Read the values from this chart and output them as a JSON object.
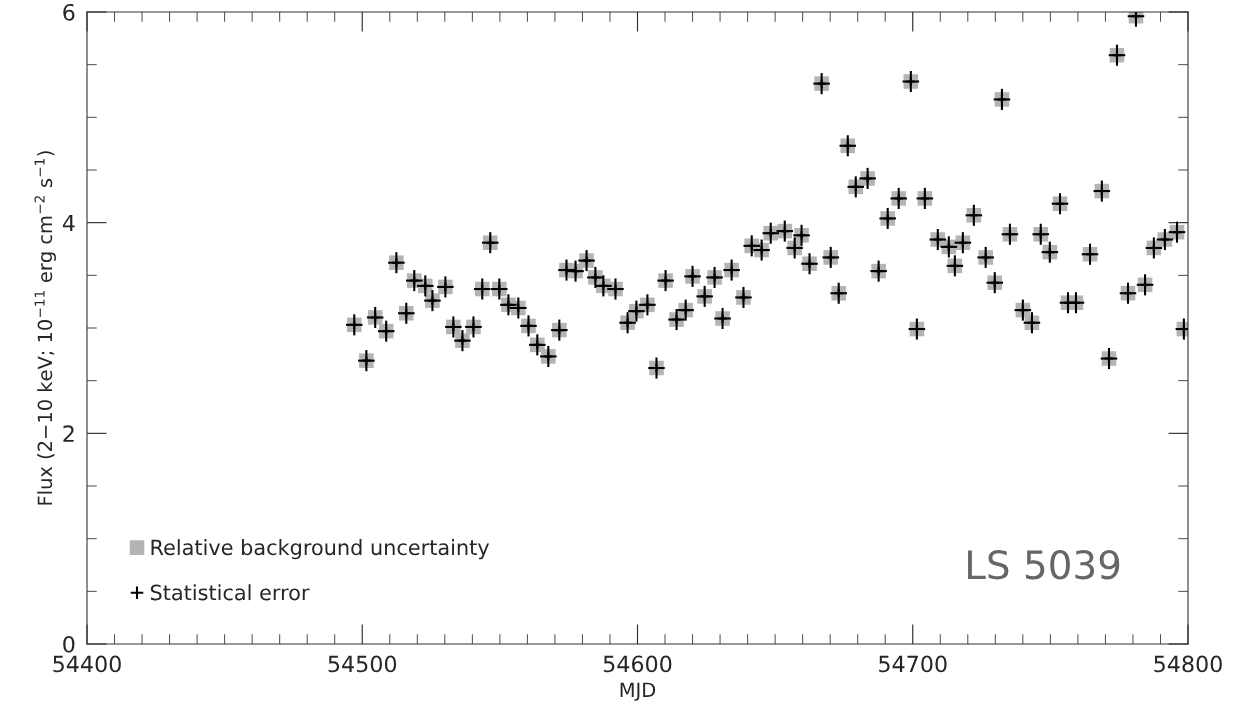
{
  "chart_data": {
    "type": "scatter",
    "xlabel": "MJD",
    "ylabel": "Flux (2−10 keV; 10$^{−11}$ erg cm$^{−2}$ s$^{−1}$)",
    "x": [
      54497.1,
      54501.5,
      54504.7,
      54508.7,
      54512.4,
      54516,
      54518.9,
      54522.9,
      54525.5,
      54530.2,
      54533.1,
      54536.4,
      54540.4,
      54543.6,
      54546.5,
      54549.8,
      54553.1,
      54556.7,
      54560.4,
      54563.6,
      54567.6,
      54571.6,
      54574.2,
      54577.5,
      54581.5,
      54584.7,
      54587.6,
      54592,
      54596.4,
      54599.6,
      54603.6,
      54606.9,
      54610.2,
      54614.2,
      54617.5,
      54620,
      54624.4,
      54628,
      54630.9,
      54634.2,
      54638.5,
      54641.5,
      54645.1,
      54648.4,
      54653.5,
      54657.1,
      54659.6,
      54662.5,
      54666.9,
      54670.2,
      54673.1,
      54676.4,
      54679.3,
      54683.6,
      54687.6,
      54690.9,
      54694.9,
      54699.3,
      54701.5,
      54704.4,
      54709.1,
      54713.1,
      54715.3,
      54718.2,
      54722.2,
      54726.5,
      54729.8,
      54732.4,
      54735.3,
      54740,
      54743.3,
      54746.5,
      54749.8,
      54753.5,
      54756.4,
      54759.3,
      54764.4,
      54768.7,
      54771.3,
      54774.2,
      54778.2,
      54781.1,
      54784.4,
      54787.6,
      54791.6,
      54796,
      54798.5
    ],
    "series": [
      {
        "name": "Relative background uncertainty",
        "color": "#b4b4b4",
        "marker": "square",
        "values": [
          3.03,
          2.69,
          3.1,
          2.97,
          3.62,
          3.14,
          3.45,
          3.4,
          3.26,
          3.39,
          3.01,
          2.88,
          3.01,
          3.37,
          3.81,
          3.37,
          3.22,
          3.19,
          3.02,
          2.84,
          2.73,
          2.98,
          3.55,
          3.54,
          3.64,
          3.48,
          3.4,
          3.37,
          3.05,
          3.16,
          3.22,
          2.62,
          3.45,
          3.08,
          3.17,
          3.49,
          3.3,
          3.48,
          3.09,
          3.55,
          3.29,
          3.78,
          3.74,
          3.9,
          3.92,
          3.76,
          3.88,
          3.61,
          5.32,
          3.67,
          3.33,
          4.73,
          4.34,
          4.42,
          3.54,
          4.04,
          4.23,
          5.34,
          2.99,
          4.23,
          3.84,
          3.77,
          3.59,
          3.81,
          4.07,
          3.67,
          3.43,
          5.17,
          3.89,
          3.17,
          3.05,
          3.89,
          3.72,
          4.18,
          3.24,
          3.24,
          3.7,
          4.3,
          2.71,
          5.59,
          3.33,
          5.96,
          3.41,
          3.76,
          3.84,
          3.91,
          2.99
        ]
      },
      {
        "name": "Statistical error",
        "color": "#000000",
        "marker": "cross",
        "errors": [
          0.1,
          0.1,
          0.1,
          0.1,
          0.1,
          0.1,
          0.1,
          0.1,
          0.1,
          0.1,
          0.1,
          0.1,
          0.1,
          0.1,
          0.1,
          0.1,
          0.1,
          0.1,
          0.1,
          0.1,
          0.1,
          0.1,
          0.1,
          0.1,
          0.1,
          0.1,
          0.1,
          0.1,
          0.1,
          0.1,
          0.1,
          0.1,
          0.1,
          0.1,
          0.1,
          0.1,
          0.1,
          0.1,
          0.1,
          0.1,
          0.1,
          0.1,
          0.1,
          0.1,
          0.1,
          0.1,
          0.1,
          0.1,
          0.1,
          0.1,
          0.1,
          0.1,
          0.1,
          0.1,
          0.1,
          0.1,
          0.1,
          0.1,
          0.1,
          0.1,
          0.1,
          0.1,
          0.1,
          0.1,
          0.1,
          0.1,
          0.1,
          0.1,
          0.1,
          0.1,
          0.1,
          0.1,
          0.1,
          0.1,
          0.1,
          0.1,
          0.1,
          0.1,
          0.1,
          0.1,
          0.1,
          0.1,
          0.1,
          0.1,
          0.1,
          0.1,
          0.1
        ],
        "xerrors": [
          3,
          3,
          3,
          3,
          3,
          3,
          3,
          3,
          3,
          3,
          3,
          3,
          3,
          3,
          3,
          3,
          3,
          3,
          3,
          3,
          3,
          3,
          3,
          3,
          3,
          3,
          3,
          3,
          3,
          3,
          3,
          3,
          3,
          3,
          3,
          3,
          3,
          3,
          3,
          3,
          3,
          3,
          3,
          3,
          3,
          3,
          3,
          3,
          3,
          3,
          3,
          3,
          3,
          3,
          3,
          3,
          3,
          3,
          3,
          3,
          3,
          3,
          3,
          3,
          3,
          3,
          3,
          3,
          3,
          3,
          3,
          3,
          3,
          3,
          3,
          3,
          3,
          3,
          3,
          3,
          3,
          3,
          3,
          3,
          3,
          3,
          [
            54795.5,
            54800
          ]
        ],
        "values": [
          3.03,
          2.69,
          3.1,
          2.97,
          3.62,
          3.14,
          3.45,
          3.4,
          3.26,
          3.39,
          3.01,
          2.88,
          3.01,
          3.37,
          3.81,
          3.37,
          3.22,
          3.19,
          3.02,
          2.84,
          2.73,
          2.98,
          3.55,
          3.54,
          3.64,
          3.48,
          3.4,
          3.37,
          3.05,
          3.16,
          3.22,
          2.62,
          3.45,
          3.08,
          3.17,
          3.49,
          3.3,
          3.48,
          3.09,
          3.55,
          3.29,
          3.78,
          3.74,
          3.9,
          3.92,
          3.76,
          3.88,
          3.61,
          5.32,
          3.67,
          3.33,
          4.73,
          4.34,
          4.42,
          3.54,
          4.04,
          4.23,
          5.34,
          2.99,
          4.23,
          3.84,
          3.77,
          3.59,
          3.81,
          4.07,
          3.67,
          3.43,
          5.17,
          3.89,
          3.17,
          3.05,
          3.89,
          3.72,
          4.18,
          3.24,
          3.24,
          3.7,
          4.3,
          2.71,
          5.59,
          3.33,
          5.96,
          3.41,
          3.76,
          3.84,
          3.91,
          2.99
        ]
      }
    ],
    "xlim": [
      54400,
      54800
    ],
    "xticks": [
      54400,
      54500,
      54600,
      54700,
      54800
    ],
    "ylim": [
      0,
      6
    ],
    "yticks": [
      0,
      2,
      4,
      6
    ],
    "legend": "bottom left",
    "grid": false,
    "annotations": [
      "LS 5039"
    ]
  }
}
